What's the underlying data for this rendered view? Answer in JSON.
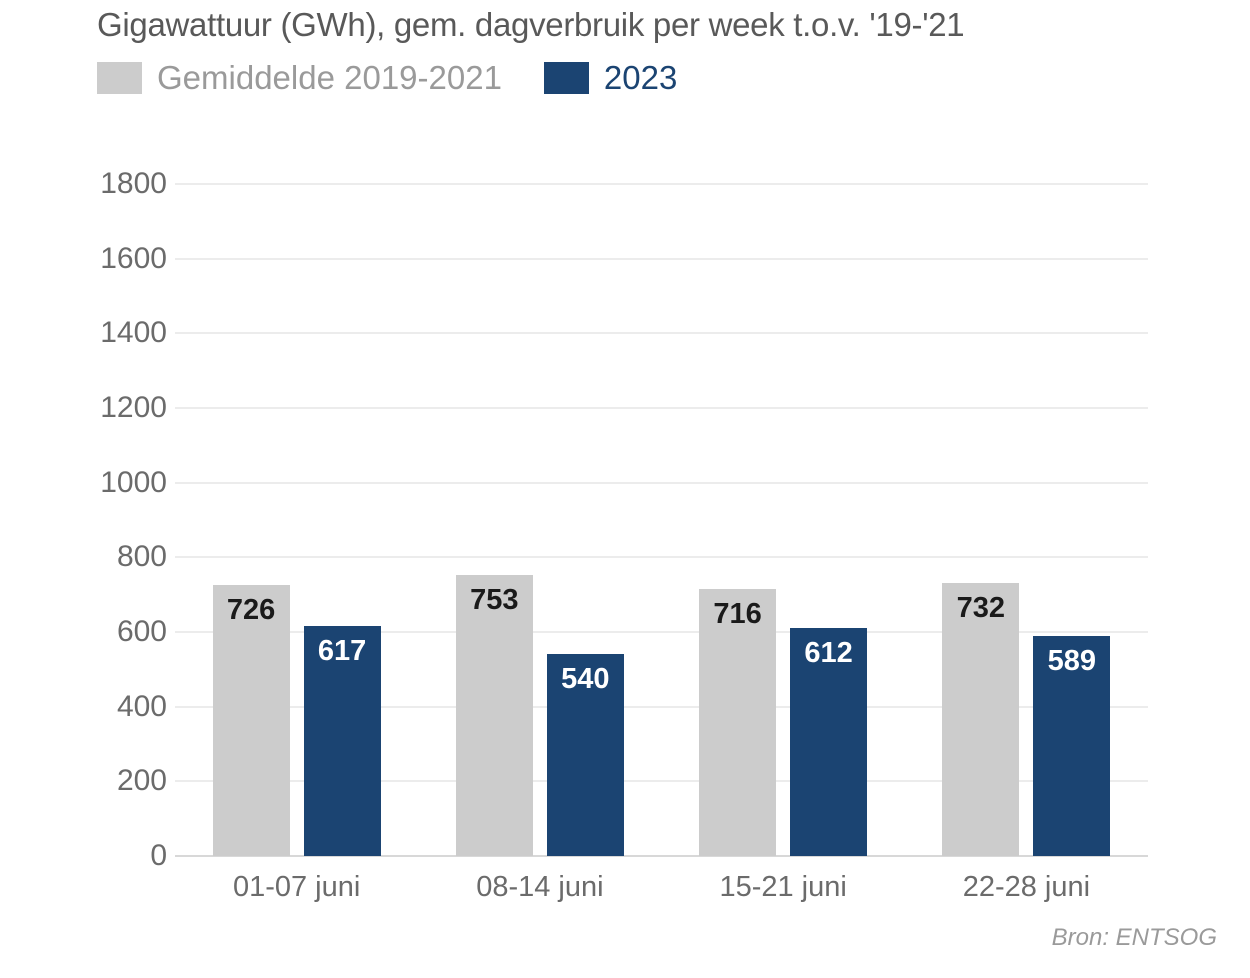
{
  "header": {
    "title": "Gigawattuur (GWh), gem. dagverbruik per week t.o.v. '19-'21"
  },
  "legend": {
    "items": [
      {
        "label": "Gemiddelde 2019-2021",
        "color": "#cccccc",
        "text_color": "#9a9a9a"
      },
      {
        "label": "2023",
        "color": "#1b4472",
        "text_color": "#1b4472"
      }
    ]
  },
  "footer": {
    "source": "Bron: ENTSOG"
  },
  "chart_data": {
    "type": "bar",
    "title": "Gigawattuur (GWh), gem. dagverbruik per week t.o.v. '19-'21",
    "categories": [
      "01-07 juni",
      "08-14 juni",
      "15-21 juni",
      "22-28 juni"
    ],
    "series": [
      {
        "name": "Gemiddelde 2019-2021",
        "color": "#cccccc",
        "label_color": "#1a1a1a",
        "values": [
          726,
          753,
          716,
          732
        ]
      },
      {
        "name": "2023",
        "color": "#1b4472",
        "label_color": "#ffffff",
        "values": [
          617,
          540,
          612,
          589
        ]
      }
    ],
    "xlabel": "",
    "ylabel": "",
    "ylim": [
      0,
      1800
    ],
    "yticks": [
      0,
      200,
      400,
      600,
      800,
      1000,
      1200,
      1400,
      1600,
      1800
    ],
    "grid": true,
    "legend_position": "top-left",
    "source": "Bron: ENTSOG",
    "colors": {
      "grid": "#ececec",
      "baseline": "#d8d8d8",
      "axis_text": "#6b6b6b",
      "title_text": "#595959"
    }
  }
}
